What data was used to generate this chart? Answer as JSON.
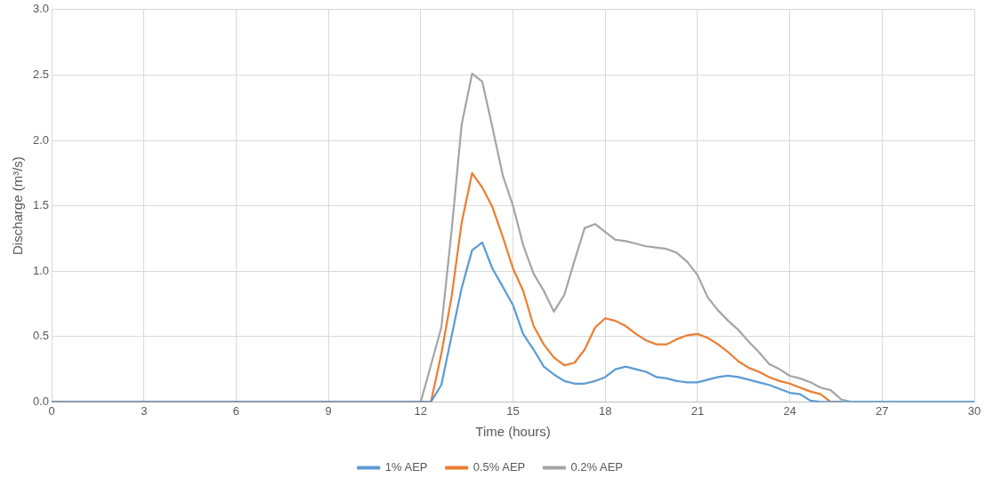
{
  "chart_data": {
    "type": "line",
    "xlabel": "Time (hours)",
    "ylabel": "Discharge (m³/s)",
    "x": [
      0,
      12,
      12.33,
      12.67,
      13,
      13.33,
      13.67,
      14,
      14.33,
      14.67,
      15,
      15.33,
      15.67,
      16,
      16.33,
      16.67,
      17,
      17.33,
      17.67,
      18,
      18.33,
      18.67,
      19,
      19.33,
      19.67,
      20,
      20.33,
      20.67,
      21,
      21.33,
      21.67,
      22,
      22.33,
      22.67,
      23,
      23.33,
      23.67,
      24,
      24.33,
      24.67,
      25,
      25.33,
      25.67,
      26,
      30
    ],
    "series": [
      {
        "name": "1% AEP",
        "color": "#5b9bd5",
        "values": [
          0,
          0,
          0,
          0.13,
          0.5,
          0.87,
          1.16,
          1.22,
          1.02,
          0.88,
          0.74,
          0.52,
          0.4,
          0.27,
          0.21,
          0.16,
          0.14,
          0.14,
          0.16,
          0.19,
          0.25,
          0.27,
          0.25,
          0.23,
          0.19,
          0.18,
          0.16,
          0.15,
          0.15,
          0.17,
          0.19,
          0.2,
          0.19,
          0.17,
          0.15,
          0.13,
          0.1,
          0.07,
          0.06,
          0.01,
          0,
          0,
          0,
          0,
          0
        ]
      },
      {
        "name": "0.5% AEP",
        "color": "#ed7d31",
        "values": [
          0,
          0,
          0,
          0.37,
          0.8,
          1.37,
          1.75,
          1.64,
          1.49,
          1.26,
          1.02,
          0.85,
          0.58,
          0.44,
          0.34,
          0.28,
          0.3,
          0.4,
          0.57,
          0.64,
          0.62,
          0.58,
          0.52,
          0.47,
          0.44,
          0.44,
          0.48,
          0.51,
          0.52,
          0.49,
          0.44,
          0.38,
          0.31,
          0.26,
          0.23,
          0.19,
          0.16,
          0.14,
          0.11,
          0.08,
          0.06,
          0,
          0,
          null,
          null
        ]
      },
      {
        "name": "0.2% AEP",
        "color": "#a5a5a5",
        "values": [
          0,
          0,
          0.28,
          0.57,
          1.3,
          2.12,
          2.51,
          2.45,
          2.1,
          1.73,
          1.5,
          1.2,
          0.98,
          0.85,
          0.69,
          0.82,
          1.08,
          1.33,
          1.36,
          1.3,
          1.24,
          1.23,
          1.21,
          1.19,
          1.18,
          1.17,
          1.14,
          1.07,
          0.97,
          0.8,
          0.7,
          0.62,
          0.55,
          0.46,
          0.38,
          0.29,
          0.25,
          0.2,
          0.18,
          0.15,
          0.11,
          0.09,
          0.02,
          0,
          0
        ]
      }
    ],
    "xlim": [
      0,
      30
    ],
    "xticks": [
      0,
      3,
      6,
      9,
      12,
      15,
      18,
      21,
      24,
      27,
      30
    ],
    "ylim": [
      0,
      3
    ],
    "yticks": [
      {
        "value": 0,
        "label": "0.0"
      },
      {
        "value": 0.5,
        "label": "0.5"
      },
      {
        "value": 1,
        "label": "1.0"
      },
      {
        "value": 1.5,
        "label": "1.5"
      },
      {
        "value": 2,
        "label": "2.0"
      },
      {
        "value": 2.5,
        "label": "2.5"
      },
      {
        "value": 3,
        "label": "3.0"
      }
    ],
    "grid": true,
    "legend": "bottom",
    "marker": "none",
    "line_style": "solid"
  }
}
